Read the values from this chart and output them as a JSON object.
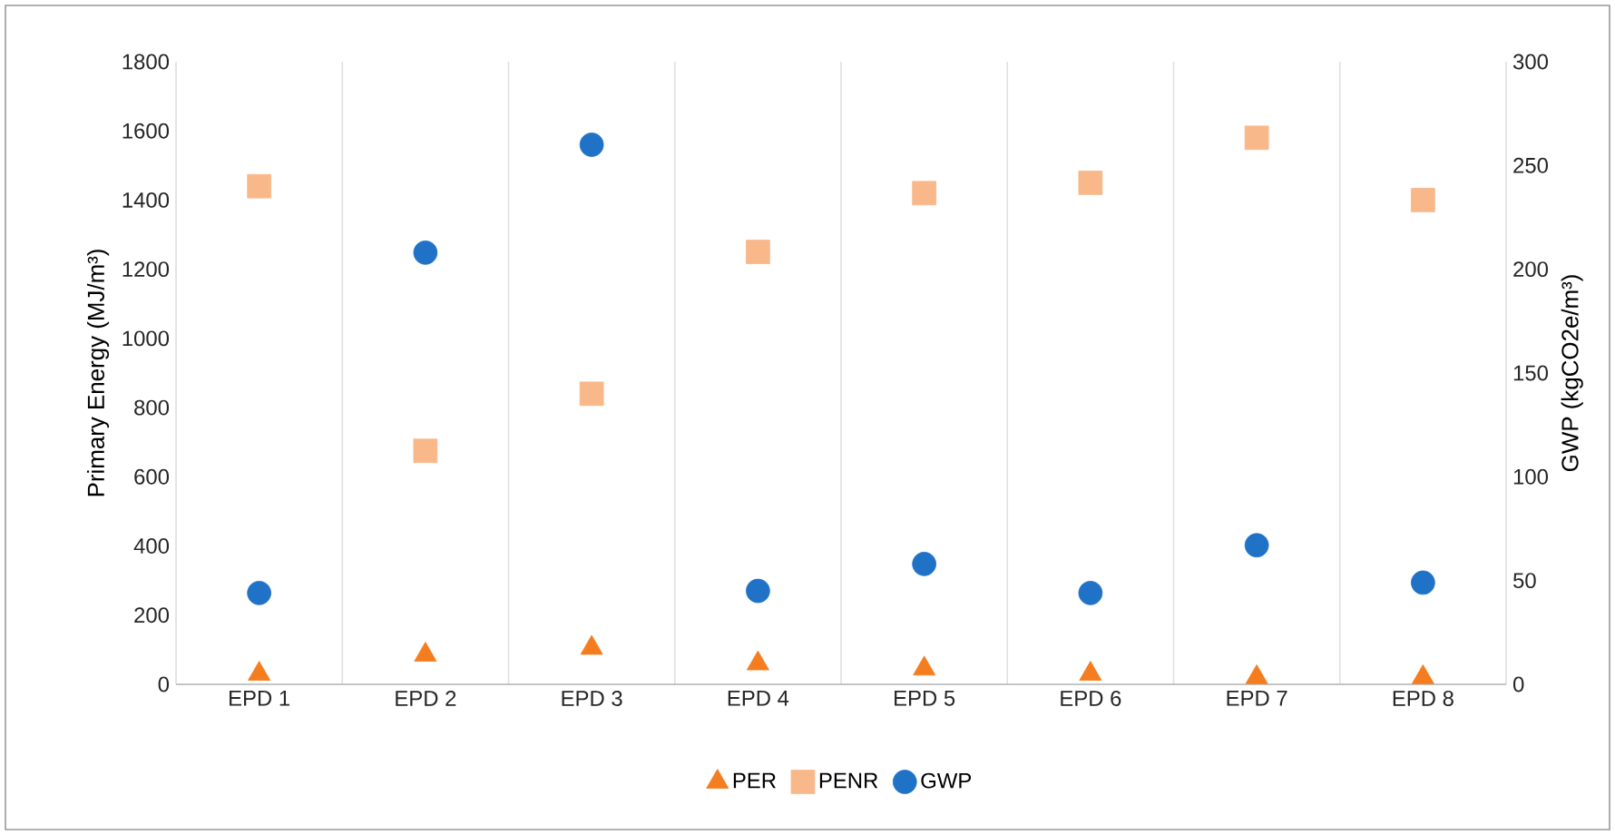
{
  "chart_data": {
    "type": "scatter",
    "ylabel": "Primary Energy (MJ/m³)",
    "y2label": "GWP (kgCO2e/m³)",
    "categories": [
      "EPD 1",
      "EPD 2",
      "EPD 3",
      "EPD 4",
      "EPD 5",
      "EPD 6",
      "EPD 7",
      "EPD 8"
    ],
    "series": [
      {
        "name": "PER",
        "color": "#f47d20",
        "marker": "triangle",
        "values": [
          30,
          85,
          105,
          60,
          45,
          30,
          20,
          20
        ]
      },
      {
        "name": "PENR",
        "color": "#f8b88a",
        "marker": "square",
        "values": [
          1440,
          675,
          840,
          1250,
          1420,
          1450,
          1580,
          1400
        ]
      },
      {
        "name": "GWP",
        "color": "#1f72c6",
        "marker": "circle",
        "axis": "y2",
        "values": [
          44,
          208,
          260,
          45,
          58,
          44,
          67,
          49
        ]
      }
    ],
    "ylim": [
      0,
      1800
    ],
    "yticks": [
      0,
      200,
      400,
      600,
      800,
      1000,
      1200,
      1400,
      1600,
      1800
    ],
    "y2lim": [
      0,
      300
    ],
    "y2ticks": [
      0,
      50,
      100,
      150,
      200,
      250,
      300
    ],
    "grid": "x",
    "legend": "bottom"
  }
}
